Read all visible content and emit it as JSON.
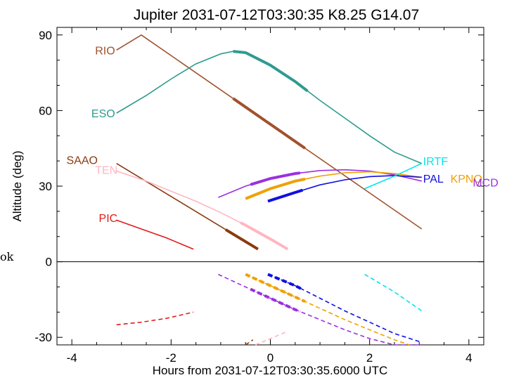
{
  "stray_text": "ok",
  "chart_data": {
    "type": "line",
    "title": "Jupiter 2031-07-12T03:30:35  K8.25  G14.07",
    "xlabel": "Hours from 2031-07-12T03:30:35.6000 UTC",
    "ylabel": "Altitude (deg)",
    "xlim": [
      -4.3,
      4.3
    ],
    "ylim": [
      -33,
      93
    ],
    "xticks": [
      -4,
      -2,
      0,
      2,
      4
    ],
    "yticks": [
      -30,
      0,
      30,
      60,
      90
    ],
    "grid": false,
    "legend": "labels placed at curve ends",
    "series": [
      {
        "name": "RIO",
        "color": "#a0522d",
        "x": [
          -3.1,
          -2.6,
          3.05
        ],
        "y": [
          84,
          90,
          13
        ],
        "thick": [
          [
            -0.75,
            0.7
          ]
        ]
      },
      {
        "name": "ESO",
        "color": "#2e9b8f",
        "x": [
          -3.1,
          -2.5,
          -2.0,
          -1.5,
          -1.0,
          -0.75,
          -0.5,
          0.0,
          0.5,
          1.0,
          1.5,
          2.0,
          2.5,
          3.05
        ],
        "y": [
          59,
          66,
          72.5,
          78.5,
          82.5,
          83.5,
          83,
          78,
          71.5,
          64,
          57,
          50,
          43.5,
          39
        ],
        "thick": [
          [
            -0.75,
            0.75
          ]
        ]
      },
      {
        "name": "SAAO",
        "color": "#8b3a0f",
        "x": [
          -3.1,
          -0.25
        ],
        "y": [
          39,
          5
        ],
        "thick": [
          [
            -0.9,
            -0.25
          ]
        ],
        "below": {
          "x": [
            -0.5,
            -0.35
          ],
          "y": [
            -33,
            -31
          ]
        }
      },
      {
        "name": "TEN",
        "color": "#ffb6c1",
        "x": [
          -3.1,
          -2.5,
          -2.0,
          -1.5,
          -1.0,
          -0.5,
          0.0,
          0.35
        ],
        "y": [
          36,
          32,
          28,
          24,
          19.5,
          14.5,
          9,
          5
        ],
        "thick": [
          [
            -0.6,
            0.35
          ]
        ],
        "below": {
          "x": [
            -0.3,
            0.3
          ],
          "y": [
            -33,
            -28
          ]
        }
      },
      {
        "name": "PIC",
        "color": "#e31a1c",
        "x": [
          -3.1,
          -2.6,
          -2.1,
          -1.55
        ],
        "y": [
          16.5,
          13,
          9.5,
          5
        ],
        "thick": [],
        "below": {
          "x": [
            -3.1,
            -2.6,
            -2.1,
            -1.55
          ],
          "y": [
            -25,
            -24,
            -22.5,
            -20
          ]
        }
      },
      {
        "name": "MCD",
        "color": "#9b30e0",
        "x": [
          -1.05,
          -0.5,
          0.0,
          0.5,
          1.0,
          1.5,
          2.0,
          2.5,
          3.05
        ],
        "y": [
          25.5,
          30,
          33,
          35,
          36.2,
          36.5,
          36,
          34.5,
          32
        ],
        "thick": [
          [
            -0.4,
            0.6
          ]
        ],
        "below": {
          "x": [
            -1.05,
            -0.5,
            0.0,
            0.5,
            1.0,
            1.5,
            2.0,
            2.5,
            3.05
          ],
          "y": [
            -5,
            -10,
            -14.5,
            -19,
            -23,
            -27,
            -30.5,
            -33,
            -33
          ],
          "thick": [
            [
              -0.4,
              0.6
            ]
          ]
        }
      },
      {
        "name": "KPNO",
        "color": "#f0a000",
        "x": [
          -0.5,
          0.0,
          0.5,
          1.0,
          1.5,
          2.0,
          2.5,
          3.05
        ],
        "y": [
          25,
          29,
          32,
          34,
          35.3,
          35.7,
          35,
          33.5
        ],
        "thick": [
          [
            -0.5,
            0.7
          ]
        ],
        "below": {
          "x": [
            -0.5,
            0.0,
            0.5,
            1.0,
            1.5,
            2.0,
            2.5,
            2.8
          ],
          "y": [
            -5,
            -9.5,
            -14,
            -18.5,
            -23,
            -27,
            -31,
            -33
          ],
          "thick": [
            [
              -0.5,
              0.7
            ]
          ]
        }
      },
      {
        "name": "PAL",
        "color": "#1010e0",
        "x": [
          -0.05,
          0.5,
          1.0,
          1.5,
          2.0,
          2.5,
          3.05
        ],
        "y": [
          24,
          27.5,
          30.5,
          32.5,
          33.8,
          34.2,
          33.5
        ],
        "thick": [
          [
            -0.05,
            0.65
          ]
        ],
        "below": {
          "x": [
            -0.05,
            0.5,
            1.0,
            1.5,
            2.0,
            2.5,
            3.05
          ],
          "y": [
            -5,
            -9.5,
            -14.5,
            -19.5,
            -24,
            -28.5,
            -32
          ],
          "thick": [
            [
              -0.05,
              0.65
            ]
          ]
        }
      },
      {
        "name": "IRTF",
        "color": "#00e5ee",
        "x": [
          1.9,
          2.5,
          3.05
        ],
        "y": [
          29,
          34,
          39
        ],
        "thick": [],
        "below": {
          "x": [
            1.9,
            2.5,
            3.05
          ],
          "y": [
            -5,
            -12,
            -19.5
          ]
        }
      }
    ],
    "labels": [
      {
        "text": "RIO",
        "series": 0,
        "x": -3.1,
        "y": 84,
        "anchor": "end"
      },
      {
        "text": "ESO",
        "series": 1,
        "x": -3.1,
        "y": 59,
        "anchor": "end"
      },
      {
        "text": "SAAO",
        "series": 2,
        "x": -3.45,
        "y": 40.5,
        "anchor": "end"
      },
      {
        "text": "TEN",
        "series": 3,
        "x": -3.05,
        "y": 36.5,
        "anchor": "end"
      },
      {
        "text": "PIC",
        "series": 4,
        "x": -3.05,
        "y": 17.5,
        "anchor": "end"
      },
      {
        "text": "IRTF",
        "series": 8,
        "x": 3.05,
        "y": 40,
        "anchor": "start"
      },
      {
        "text": "PAL",
        "series": 7,
        "x": 3.05,
        "y": 33,
        "anchor": "start"
      },
      {
        "text": "KPNO",
        "series": 6,
        "x": 3.6,
        "y": 33,
        "anchor": "start"
      },
      {
        "text": "MCD",
        "series": 5,
        "x": 4.05,
        "y": 31.5,
        "anchor": "start"
      }
    ]
  }
}
